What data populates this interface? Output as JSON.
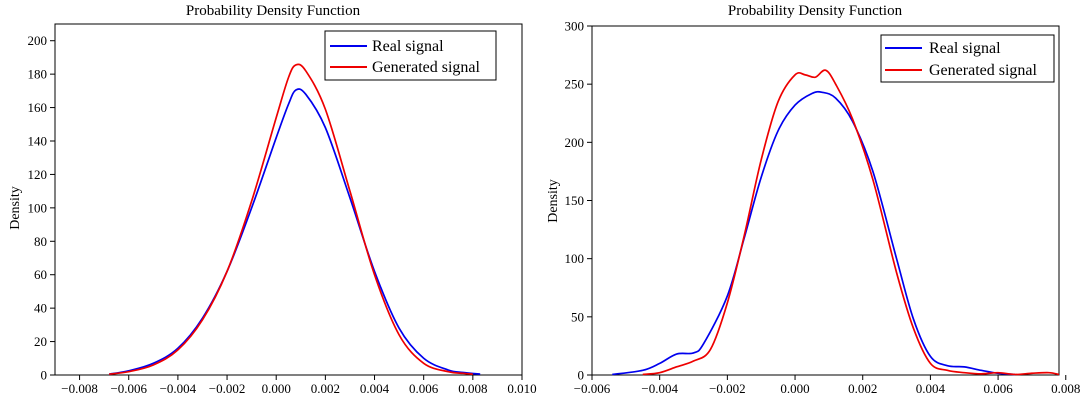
{
  "chart_data": [
    {
      "type": "line",
      "title": "Probability Density Function",
      "xlabel": "",
      "ylabel": "Density",
      "xlim": [
        -0.009,
        0.01
      ],
      "ylim": [
        0,
        210
      ],
      "xticks": [
        -0.008,
        -0.006,
        -0.004,
        -0.002,
        0.0,
        0.002,
        0.004,
        0.006,
        0.008,
        0.01
      ],
      "xtick_labels": [
        "−0.008",
        "−0.006",
        "−0.004",
        "−0.002",
        "0.000",
        "0.002",
        "0.004",
        "0.006",
        "0.008",
        "0.010"
      ],
      "yticks": [
        0,
        20,
        40,
        60,
        80,
        100,
        120,
        140,
        160,
        180,
        200
      ],
      "ytick_labels": [
        "0",
        "20",
        "40",
        "60",
        "80",
        "100",
        "120",
        "140",
        "160",
        "180",
        "200"
      ],
      "legend_position": "top-right",
      "series": [
        {
          "name": "Real signal",
          "color": "#0000ee",
          "x": [
            -0.0068,
            -0.006,
            -0.005,
            -0.004,
            -0.003,
            -0.002,
            -0.001,
            0.0,
            0.0005,
            0.0008,
            0.0012,
            0.002,
            0.003,
            0.004,
            0.005,
            0.006,
            0.007,
            0.0076,
            0.0083
          ],
          "y": [
            0.5,
            2.5,
            7,
            16,
            34,
            62,
            100,
            142,
            162,
            170.5,
            168,
            148,
            106,
            62,
            28,
            10,
            3,
            1.5,
            0.5
          ]
        },
        {
          "name": "Generated signal",
          "color": "#ee0000",
          "x": [
            -0.0068,
            -0.006,
            -0.005,
            -0.004,
            -0.003,
            -0.002,
            -0.001,
            0.0,
            0.0005,
            0.0008,
            0.0012,
            0.002,
            0.003,
            0.004,
            0.005,
            0.006,
            0.007,
            0.0076,
            0.008
          ],
          "y": [
            0.5,
            2,
            6,
            15,
            33,
            62,
            104,
            154,
            178,
            185.5,
            182,
            159,
            110,
            60,
            24,
            7,
            2,
            1,
            0.5
          ]
        }
      ]
    },
    {
      "type": "line",
      "title": "Probability Density Function",
      "xlabel": "",
      "ylabel": "Density",
      "xlim": [
        -0.006,
        0.0078
      ],
      "ylim": [
        0,
        300
      ],
      "xticks": [
        -0.006,
        -0.004,
        -0.002,
        0.0,
        0.002,
        0.004,
        0.006,
        0.008
      ],
      "xtick_labels": [
        "−0.006",
        "−0.004",
        "−0.002",
        "0.000",
        "0.002",
        "0.004",
        "0.006",
        "0.008"
      ],
      "yticks": [
        0,
        50,
        100,
        150,
        200,
        250,
        300
      ],
      "ytick_labels": [
        "0",
        "50",
        "100",
        "150",
        "200",
        "250",
        "300"
      ],
      "legend_position": "top-right",
      "series": [
        {
          "name": "Real signal",
          "color": "#0000ee",
          "x": [
            -0.0054,
            -0.0045,
            -0.004,
            -0.0035,
            -0.003,
            -0.0027,
            -0.002,
            -0.0015,
            -0.001,
            -0.0005,
            0.0,
            0.0005,
            0.0008,
            0.0012,
            0.0017,
            0.0023,
            0.003,
            0.0035,
            0.004,
            0.0045,
            0.005,
            0.0055,
            0.006,
            0.0065
          ],
          "y": [
            0.5,
            4,
            10,
            18,
            19,
            27,
            68,
            118,
            170,
            210,
            232,
            242,
            243,
            238,
            218,
            175,
            100,
            48,
            16,
            8,
            7,
            4,
            1.5,
            0.5
          ]
        },
        {
          "name": "Generated signal",
          "color": "#ee0000",
          "x": [
            -0.0045,
            -0.004,
            -0.0035,
            -0.003,
            -0.0025,
            -0.002,
            -0.0015,
            -0.001,
            -0.0005,
            0.0,
            0.0003,
            0.0006,
            0.0009,
            0.0012,
            0.0017,
            0.0023,
            0.003,
            0.0035,
            0.004,
            0.0045,
            0.005,
            0.0055,
            0.006,
            0.0065,
            0.007,
            0.0075,
            0.0078
          ],
          "y": [
            0.5,
            2,
            7,
            12,
            22,
            62,
            120,
            185,
            235,
            258,
            258,
            256,
            262,
            250,
            220,
            168,
            88,
            40,
            10,
            4,
            2,
            1,
            2,
            0.5,
            1.5,
            2,
            0.5
          ]
        }
      ]
    }
  ]
}
